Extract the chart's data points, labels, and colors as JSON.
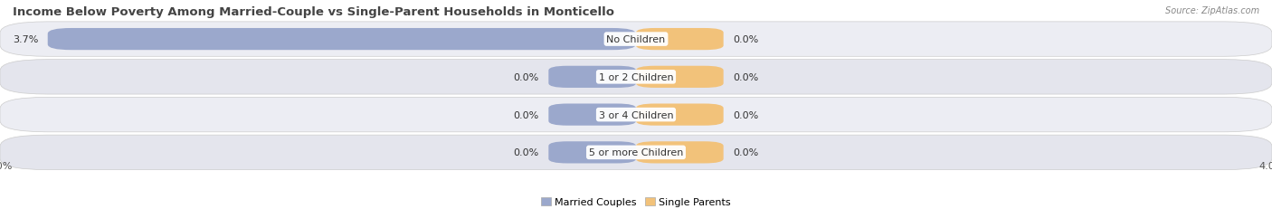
{
  "title": "Income Below Poverty Among Married-Couple vs Single-Parent Households in Monticello",
  "source": "Source: ZipAtlas.com",
  "categories": [
    "No Children",
    "1 or 2 Children",
    "3 or 4 Children",
    "5 or more Children"
  ],
  "married_values": [
    3.7,
    0.0,
    0.0,
    0.0
  ],
  "single_values": [
    0.0,
    0.0,
    0.0,
    0.0
  ],
  "xlim_left": -4.0,
  "xlim_right": 4.0,
  "married_color": "#9BA8CC",
  "single_color": "#F2C27A",
  "row_bg_colors": [
    "#ECEDF3",
    "#E4E5ED"
  ],
  "title_fontsize": 9.5,
  "label_fontsize": 8.0,
  "value_fontsize": 8.0,
  "tick_fontsize": 8.0,
  "legend_fontsize": 8.0,
  "zero_bar_width": 0.55,
  "bar_height": 0.58
}
